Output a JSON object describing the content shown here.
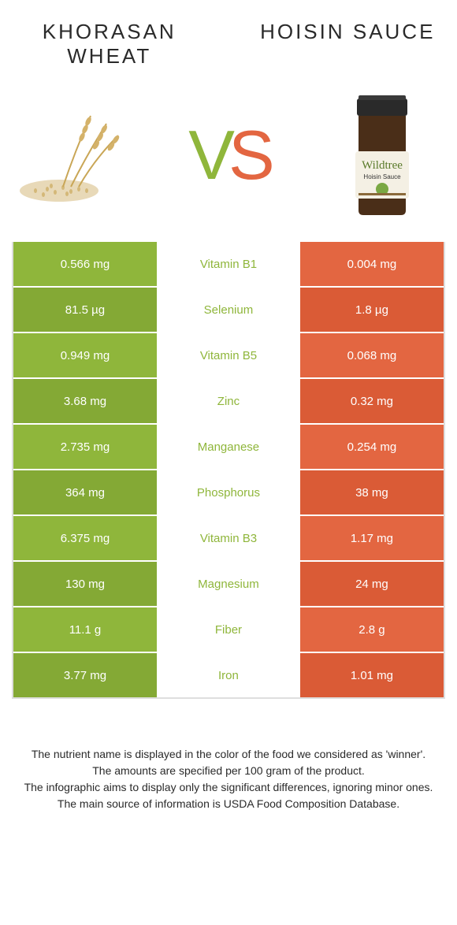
{
  "titles": {
    "left": "Khorasan wheat",
    "right": "Hoisin sauce"
  },
  "vs": {
    "v": "V",
    "s": "S"
  },
  "colors": {
    "left_bg": "#8fb63b",
    "left_bg_alt": "#84a935",
    "right_bg": "#e36641",
    "right_bg_alt": "#da5b36",
    "mid_text_left": "#8fb63b",
    "mid_text_right": "#e36641",
    "border": "#dedede"
  },
  "rows": [
    {
      "left": "0.566 mg",
      "mid": "Vitamin B1",
      "right": "0.004 mg",
      "winner": "left"
    },
    {
      "left": "81.5 µg",
      "mid": "Selenium",
      "right": "1.8 µg",
      "winner": "left"
    },
    {
      "left": "0.949 mg",
      "mid": "Vitamin B5",
      "right": "0.068 mg",
      "winner": "left"
    },
    {
      "left": "3.68 mg",
      "mid": "Zinc",
      "right": "0.32 mg",
      "winner": "left"
    },
    {
      "left": "2.735 mg",
      "mid": "Manganese",
      "right": "0.254 mg",
      "winner": "left"
    },
    {
      "left": "364 mg",
      "mid": "Phosphorus",
      "right": "38 mg",
      "winner": "left"
    },
    {
      "left": "6.375 mg",
      "mid": "Vitamin B3",
      "right": "1.17 mg",
      "winner": "left"
    },
    {
      "left": "130 mg",
      "mid": "Magnesium",
      "right": "24 mg",
      "winner": "left"
    },
    {
      "left": "11.1 g",
      "mid": "Fiber",
      "right": "2.8 g",
      "winner": "left"
    },
    {
      "left": "3.77 mg",
      "mid": "Iron",
      "right": "1.01 mg",
      "winner": "left"
    }
  ],
  "footer": {
    "line1": "The nutrient name is displayed in the color of the food we considered as 'winner'.",
    "line2": "The amounts are specified per 100 gram of the product.",
    "line3": "The infographic aims to display only the significant differences, ignoring minor ones.",
    "line4": "The main source of information is USDA Food Composition Database."
  },
  "images": {
    "left_alt": "khorasan-wheat-grains-and-stalks",
    "right_alt": "wildtree-hoisin-sauce-jar",
    "jar_label_brand": "Wildtree",
    "jar_label_product": "Hoisin Sauce"
  }
}
